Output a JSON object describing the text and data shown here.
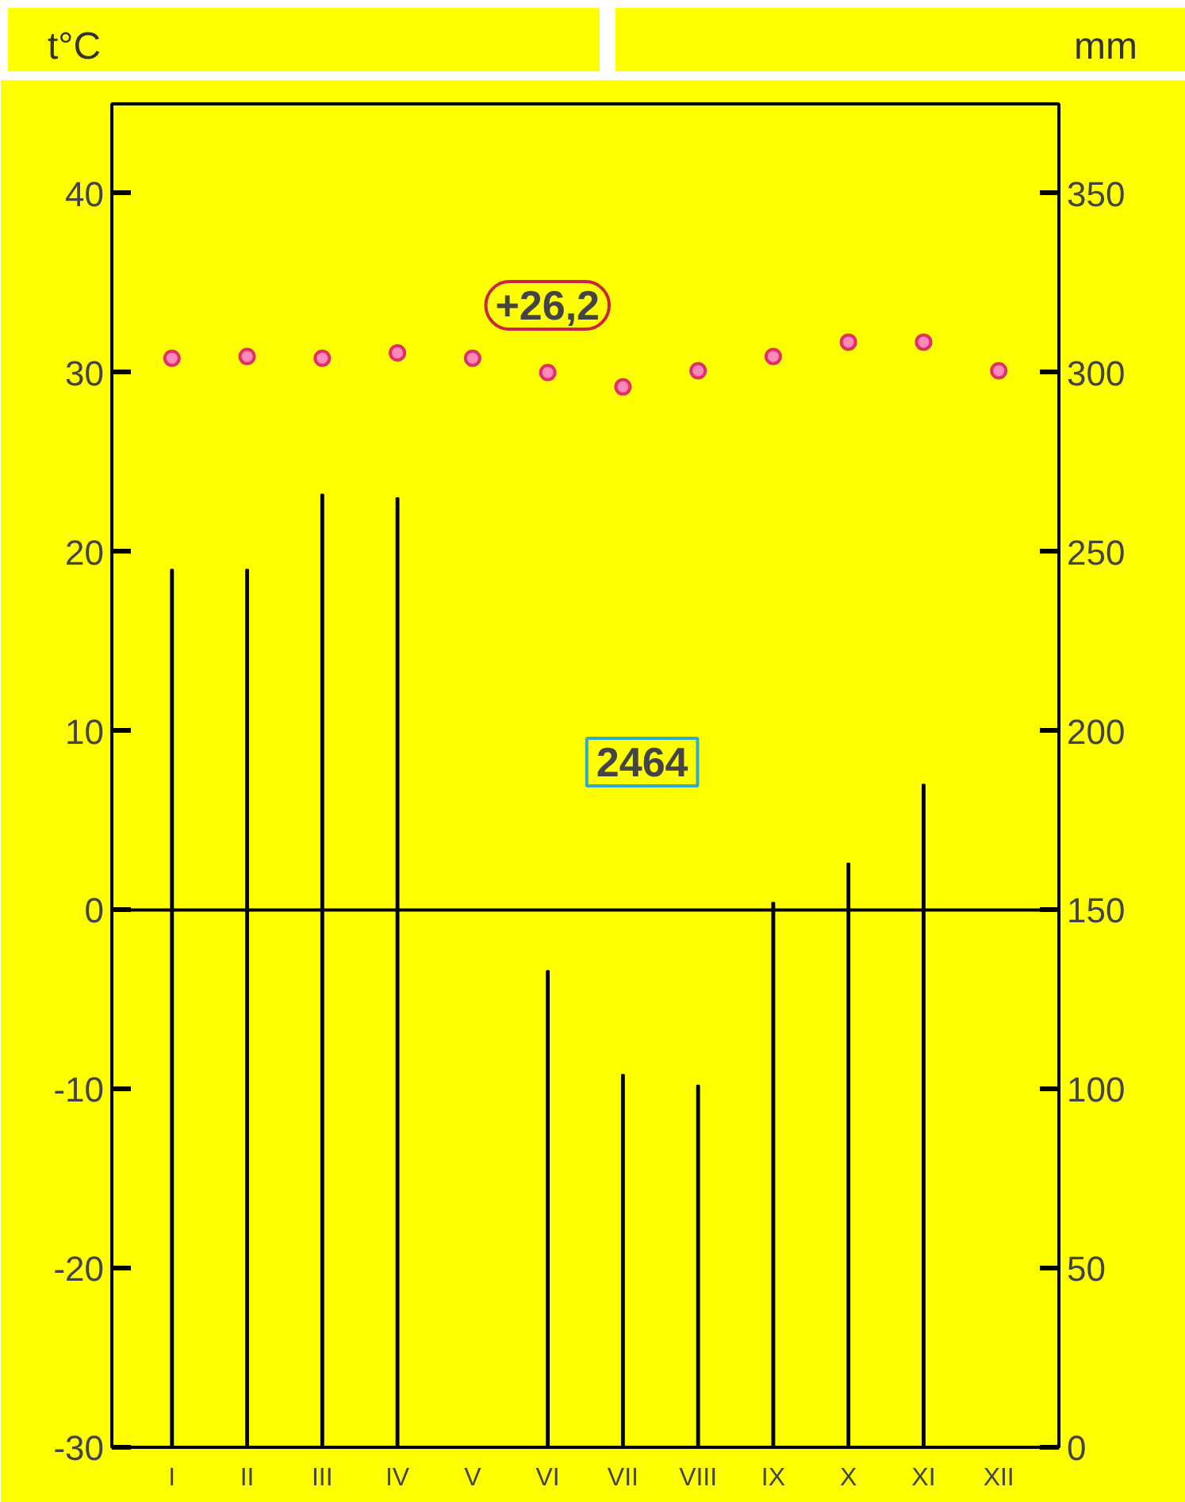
{
  "chart_data": {
    "type": "bar",
    "ylabel": "t°C",
    "y2label": "mm",
    "categories": [
      "I",
      "II",
      "III",
      "IV",
      "V",
      "VI",
      "VII",
      "VIII",
      "IX",
      "X",
      "XI",
      "XII"
    ],
    "series": [
      {
        "type": "scatter",
        "color": "#e0306a",
        "marker": "circle",
        "values": [
          30.8,
          30.9,
          30.8,
          31.1,
          30.8,
          30.0,
          29.2,
          30.1,
          30.9,
          31.7,
          31.7,
          30.1
        ]
      },
      {
        "axis": "y2",
        "color": "#000000",
        "values": [
          245,
          245,
          266,
          265,
          null,
          133,
          104,
          101,
          152,
          163,
          185,
          null
        ]
      }
    ],
    "ylim": [
      -30,
      45
    ],
    "yticks": [
      -30,
      -20,
      -10,
      0,
      10,
      20,
      30,
      40
    ],
    "y2lim": [
      0,
      375
    ],
    "y2ticks": [
      0,
      50,
      100,
      150,
      200,
      250,
      300,
      350
    ],
    "ref_lines": [
      {
        "axis": "y",
        "value": 0,
        "color": "#000000"
      }
    ],
    "annotations": [
      "+26,2",
      "2464"
    ],
    "grid": false
  }
}
